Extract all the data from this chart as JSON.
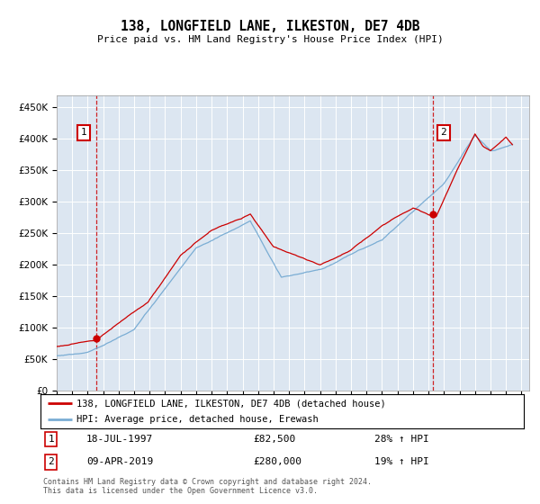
{
  "title": "138, LONGFIELD LANE, ILKESTON, DE7 4DB",
  "subtitle": "Price paid vs. HM Land Registry's House Price Index (HPI)",
  "yticks": [
    0,
    50000,
    100000,
    150000,
    200000,
    250000,
    300000,
    350000,
    400000,
    450000
  ],
  "ytick_labels": [
    "£0",
    "£50K",
    "£100K",
    "£150K",
    "£200K",
    "£250K",
    "£300K",
    "£350K",
    "£400K",
    "£450K"
  ],
  "xlim_start": 1995.0,
  "xlim_end": 2025.5,
  "ylim": [
    0,
    468000
  ],
  "plot_bg_color": "#dce6f1",
  "grid_color": "#ffffff",
  "sale1_x": 1997.54,
  "sale1_y": 82500,
  "sale2_x": 2019.27,
  "sale2_y": 280000,
  "sale1_label": "1",
  "sale2_label": "2",
  "sale1_date": "18-JUL-1997",
  "sale1_price": "£82,500",
  "sale1_hpi": "28% ↑ HPI",
  "sale2_date": "09-APR-2019",
  "sale2_price": "£280,000",
  "sale2_hpi": "19% ↑ HPI",
  "red_line_color": "#cc0000",
  "blue_line_color": "#7aadd4",
  "annotation_box_color": "#cc0000",
  "footnote": "Contains HM Land Registry data © Crown copyright and database right 2024.\nThis data is licensed under the Open Government Licence v3.0.",
  "legend1_label": "138, LONGFIELD LANE, ILKESTON, DE7 4DB (detached house)",
  "legend2_label": "HPI: Average price, detached house, Erewash"
}
